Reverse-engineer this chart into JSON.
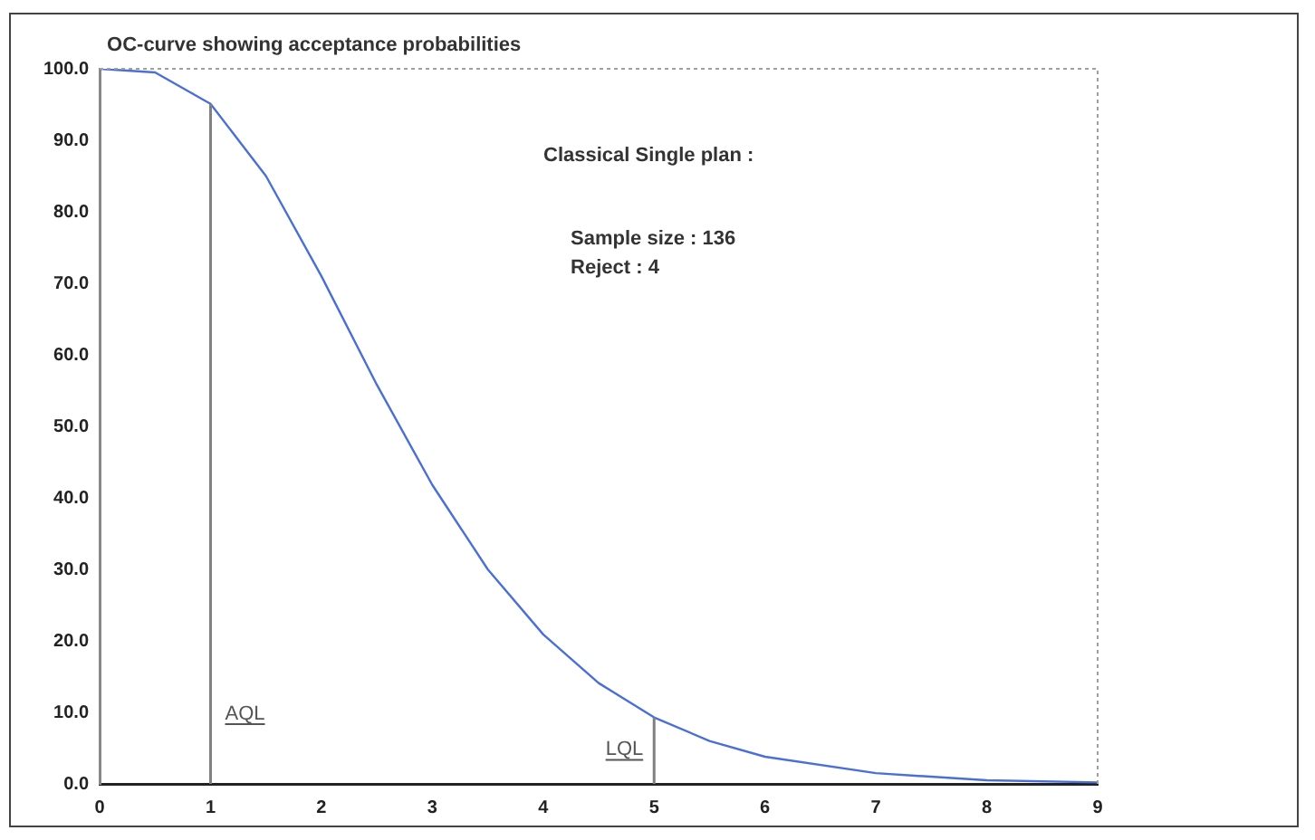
{
  "chart_data": {
    "type": "line",
    "title": "OC-curve showing acceptance probabilities",
    "x": [
      0,
      0.5,
      1,
      1.5,
      2,
      2.5,
      3,
      3.5,
      4,
      4.5,
      5,
      5.5,
      6,
      7,
      8,
      9
    ],
    "series": [
      {
        "color": "#4a6fd6",
        "values": [
          100,
          99.5,
          95.1,
          85.0,
          71.0,
          55.8,
          41.8,
          30.0,
          20.9,
          14.1,
          9.3,
          6.0,
          3.8,
          1.5,
          0.5,
          0.2
        ]
      }
    ],
    "xlim": [
      0,
      9
    ],
    "xticks": [
      0,
      1,
      2,
      3,
      4,
      5,
      6,
      7,
      8,
      9
    ],
    "ylim": [
      0,
      100
    ],
    "yticks": [
      {
        "value": 0,
        "label": "0.0"
      },
      {
        "value": 10,
        "label": "10.0"
      },
      {
        "value": 20,
        "label": "20.0"
      },
      {
        "value": 30,
        "label": "30.0"
      },
      {
        "value": 40,
        "label": "40.0"
      },
      {
        "value": 50,
        "label": "50.0"
      },
      {
        "value": 60,
        "label": "60.0"
      },
      {
        "value": 70,
        "label": "70.0"
      },
      {
        "value": 80,
        "label": "80.0"
      },
      {
        "value": 90,
        "label": "90.0"
      },
      {
        "value": 100,
        "label": "100.0"
      }
    ],
    "ref_lines": [
      {
        "axis": "x",
        "value": 1,
        "label": "AQL",
        "color": "#808080"
      },
      {
        "axis": "x",
        "value": 5,
        "label": "LQL",
        "color": "#808080"
      }
    ],
    "annotations": [
      "Classical Single plan :",
      "Sample size : 136",
      "Reject : 4"
    ],
    "grid": false,
    "legend": false,
    "marker": "none",
    "line_style": "solid"
  }
}
